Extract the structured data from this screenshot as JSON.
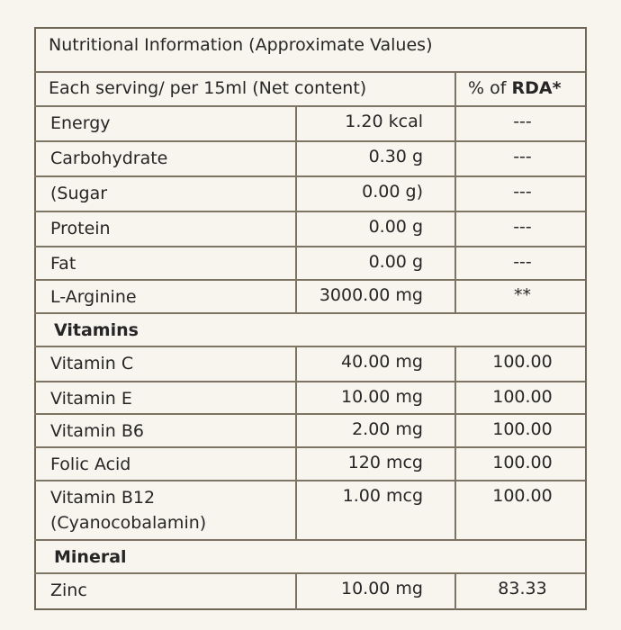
{
  "table": {
    "title": "Nutritional Information (Approximate Values)",
    "header": {
      "label": "Each serving/ per 15ml (Net content)",
      "rda": [
        "% of",
        "RDA*"
      ]
    },
    "rows": [
      {
        "name": "Energy",
        "amount": "1.20 kcal",
        "rda": "---"
      },
      {
        "name": "Carbohydrate",
        "amount": "0.30 g",
        "rda": "---"
      },
      {
        "name": "(Sugar",
        "amount": "0.00 g)",
        "rda": "---"
      },
      {
        "name": "Protein",
        "amount": "0.00 g",
        "rda": "---"
      },
      {
        "name": "Fat",
        "amount": "0.00 g",
        "rda": "---"
      },
      {
        "name": "L-Arginine",
        "amount": "3000.00 mg",
        "rda": "**"
      },
      {
        "section": "Vitamins"
      },
      {
        "name": "Vitamin C",
        "amount": "40.00 mg",
        "rda": "100.00"
      },
      {
        "name": "Vitamin E",
        "amount": "10.00 mg",
        "rda": "100.00"
      },
      {
        "name": "Vitamin B6",
        "amount": "2.00 mg",
        "rda": "100.00"
      },
      {
        "name": "Folic Acid",
        "amount": "120 mcg",
        "rda": "100.00"
      },
      {
        "name": "Vitamin B12",
        "subname": "(Cyanocobalamin)",
        "amount": "1.00 mcg",
        "rda": "100.00"
      },
      {
        "section": "Mineral"
      },
      {
        "name": "Zinc",
        "amount": "10.00 mg",
        "rda": "83.33"
      }
    ]
  }
}
